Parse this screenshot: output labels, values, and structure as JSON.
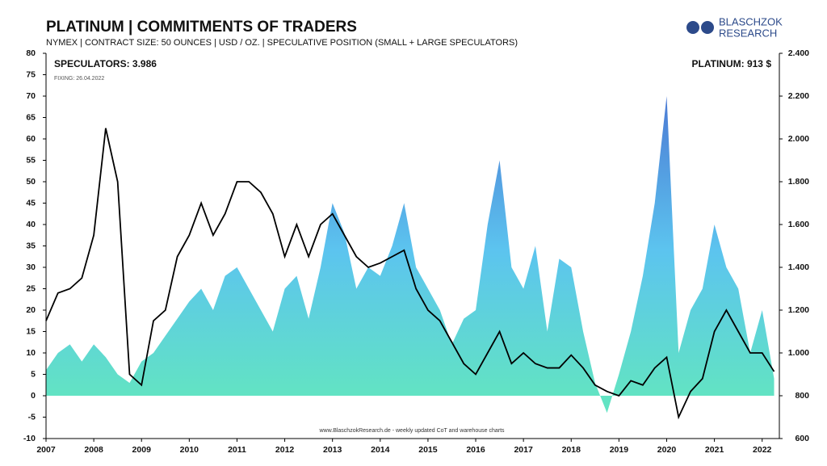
{
  "chart_data": {
    "type": "area-line",
    "title": "PLATINUM | COMMITMENTS OF TRADERS",
    "subtitle": "NYMEX | CONTRACT SIZE: 50 OUNCES | USD / OZ. | SPECULATIVE POSITION (SMALL + LARGE SPECULATORS)",
    "annotations": {
      "left": "SPECULATORS: 3.986",
      "fixing": "FIXING: 26.04.2022",
      "right": "PLATINUM: 913 $",
      "footer": "www.BlaschzokResearch.de  - weekly updated CoT and warehouse charts"
    },
    "logo": {
      "line1": "BLASCHZOK",
      "line2": "RESEARCH"
    },
    "x": [
      2007.0,
      2007.25,
      2007.5,
      2007.75,
      2008.0,
      2008.25,
      2008.5,
      2008.75,
      2009.0,
      2009.25,
      2009.5,
      2009.75,
      2010.0,
      2010.25,
      2010.5,
      2010.75,
      2011.0,
      2011.25,
      2011.5,
      2011.75,
      2012.0,
      2012.25,
      2012.5,
      2012.75,
      2013.0,
      2013.25,
      2013.5,
      2013.75,
      2014.0,
      2014.25,
      2014.5,
      2014.75,
      2015.0,
      2015.25,
      2015.5,
      2015.75,
      2016.0,
      2016.25,
      2016.5,
      2016.75,
      2017.0,
      2017.25,
      2017.5,
      2017.75,
      2018.0,
      2018.25,
      2018.5,
      2018.75,
      2019.0,
      2019.25,
      2019.5,
      2019.75,
      2020.0,
      2020.25,
      2020.5,
      2020.75,
      2021.0,
      2021.25,
      2021.5,
      2021.75,
      2022.0,
      2022.25
    ],
    "series": [
      {
        "name": "SPECULATORS",
        "color": "#5ab8e8",
        "values": [
          6,
          10,
          12,
          8,
          12,
          9,
          5,
          3,
          8,
          10,
          14,
          18,
          22,
          25,
          20,
          28,
          30,
          25,
          20,
          15,
          25,
          28,
          18,
          30,
          45,
          38,
          25,
          30,
          28,
          35,
          45,
          30,
          25,
          20,
          12,
          18,
          20,
          40,
          55,
          30,
          25,
          35,
          15,
          32,
          30,
          15,
          3,
          -4,
          5,
          15,
          28,
          45,
          70,
          10,
          20,
          25,
          40,
          30,
          25,
          10,
          20,
          4
        ]
      },
      {
        "name": "PLATINUM",
        "color": "#000000",
        "axis": "y2",
        "values": [
          1150,
          1280,
          1300,
          1350,
          1550,
          2050,
          1800,
          900,
          850,
          1150,
          1200,
          1450,
          1550,
          1700,
          1550,
          1650,
          1800,
          1800,
          1750,
          1650,
          1450,
          1600,
          1450,
          1600,
          1650,
          1550,
          1450,
          1400,
          1420,
          1450,
          1480,
          1300,
          1200,
          1150,
          1050,
          950,
          900,
          1000,
          1100,
          950,
          1000,
          950,
          930,
          930,
          990,
          930,
          850,
          820,
          800,
          870,
          850,
          930,
          980,
          700,
          820,
          880,
          1100,
          1200,
          1100,
          1000,
          1000,
          913
        ]
      }
    ],
    "xlim": [
      2007,
      2022.36
    ],
    "xticks": [
      2007,
      2008,
      2009,
      2010,
      2011,
      2012,
      2013,
      2014,
      2015,
      2016,
      2017,
      2018,
      2019,
      2020,
      2021,
      2022
    ],
    "ylim": [
      -10,
      80
    ],
    "yticks": [
      -10,
      -5,
      0,
      5,
      10,
      15,
      20,
      25,
      30,
      35,
      40,
      45,
      50,
      55,
      60,
      65,
      70,
      75,
      80
    ],
    "y2lim": [
      600,
      2400
    ],
    "y2ticks": [
      {
        "value": 600,
        "label": "600"
      },
      {
        "value": 800,
        "label": "800"
      },
      {
        "value": 1000,
        "label": "1.000"
      },
      {
        "value": 1200,
        "label": "1.200"
      },
      {
        "value": 1400,
        "label": "1.400"
      },
      {
        "value": 1600,
        "label": "1.600"
      },
      {
        "value": 1800,
        "label": "1.800"
      },
      {
        "value": 2000,
        "label": "2.000"
      },
      {
        "value": 2200,
        "label": "2.200"
      },
      {
        "value": 2400,
        "label": "2.400"
      }
    ]
  }
}
